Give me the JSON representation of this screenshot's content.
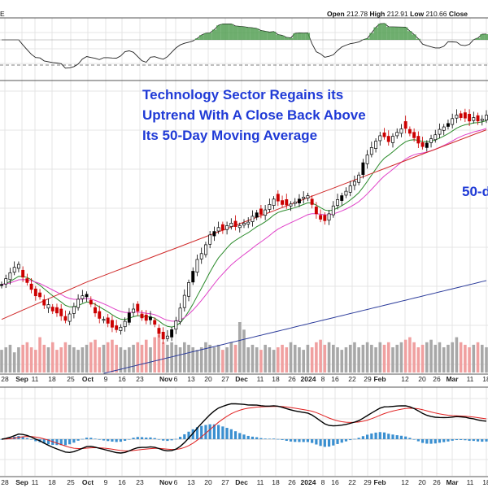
{
  "header": {
    "ticker_fragment": "E",
    "open_label": "Open",
    "open": "212.78",
    "high_label": "High",
    "high": "212.91",
    "low_label": "Low",
    "low": "210.66",
    "close_label": "Close"
  },
  "annotation": {
    "line1": "Technology Sector Regains its",
    "line2": "Uptrend With A Close Back Above",
    "line3": "Its 50-Day Moving Average",
    "ma_label": "50-d"
  },
  "colors": {
    "up_candle": "#000000",
    "down_candle": "#cc0000",
    "ema_fast": "#2a8a2a",
    "ema_slow": "#e040c8",
    "ma50": "#d02a2a",
    "ma200": "#2a3a9a",
    "volume_up": "#a8a8a8",
    "volume_down": "#f0a0a0",
    "macd_line": "#000000",
    "signal_line": "#e02020",
    "histogram": "#3a8fd0",
    "rsi_overbought_fill": "#4a9a4a",
    "annotation_text": "#1f3ad6"
  },
  "chart_data": {
    "type": "candlestick",
    "panels": [
      "RSI",
      "price",
      "volume",
      "MACD"
    ],
    "x_tick_labels": [
      {
        "label": "28",
        "bold": false
      },
      {
        "label": "Sep",
        "bold": true
      },
      {
        "label": "11",
        "bold": false
      },
      {
        "label": "18",
        "bold": false
      },
      {
        "label": "25",
        "bold": false
      },
      {
        "label": "Oct",
        "bold": true
      },
      {
        "label": "9",
        "bold": false
      },
      {
        "label": "16",
        "bold": false
      },
      {
        "label": "23",
        "bold": false
      },
      {
        "label": "Nov",
        "bold": true
      },
      {
        "label": "6",
        "bold": false
      },
      {
        "label": "13",
        "bold": false
      },
      {
        "label": "20",
        "bold": false
      },
      {
        "label": "27",
        "bold": false
      },
      {
        "label": "Dec",
        "bold": true
      },
      {
        "label": "11",
        "bold": false
      },
      {
        "label": "18",
        "bold": false
      },
      {
        "label": "26",
        "bold": false
      },
      {
        "label": "2024",
        "bold": true
      },
      {
        "label": "8",
        "bold": false
      },
      {
        "label": "16",
        "bold": false
      },
      {
        "label": "22",
        "bold": false
      },
      {
        "label": "29",
        "bold": false
      },
      {
        "label": "Feb",
        "bold": true
      },
      {
        "label": "12",
        "bold": false
      },
      {
        "label": "20",
        "bold": false
      },
      {
        "label": "26",
        "bold": false
      },
      {
        "label": "Mar",
        "bold": true
      },
      {
        "label": "11",
        "bold": false
      },
      {
        "label": "18",
        "bold": false
      }
    ],
    "x_tick_positions": [
      6,
      27,
      43,
      64,
      87,
      108,
      130,
      150,
      172,
      204,
      216,
      235,
      256,
      277,
      297,
      320,
      339,
      359,
      379,
      397,
      412,
      433,
      452,
      467,
      498,
      519,
      537,
      556,
      578,
      598
    ],
    "grid": true,
    "price_closes": [
      174.6,
      175.8,
      177.0,
      178.1,
      178.7,
      176.1,
      175.0,
      173.6,
      172.3,
      172.1,
      170.4,
      169.8,
      169.2,
      168.8,
      168.2,
      167.3,
      168.6,
      170.1,
      171.6,
      172.3,
      172.6,
      170.6,
      168.8,
      167.7,
      167.3,
      166.7,
      165.9,
      165.4,
      165.9,
      167.1,
      168.8,
      169.6,
      169.2,
      167.8,
      167.3,
      168.0,
      166.5,
      164.6,
      163.5,
      164.1,
      165.4,
      167.2,
      169.8,
      172.4,
      175.0,
      177.3,
      179.7,
      180.9,
      182.7,
      184.7,
      185.4,
      186.2,
      185.7,
      186.6,
      187.1,
      186.4,
      186.6,
      187.1,
      187.3,
      188.5,
      189.2,
      188.9,
      189.8,
      190.9,
      192.0,
      191.6,
      190.9,
      190.8,
      191.0,
      191.4,
      192.0,
      192.4,
      192.7,
      190.9,
      189.0,
      187.9,
      187.6,
      189.0,
      190.6,
      191.9,
      192.7,
      193.6,
      194.7,
      195.6,
      196.9,
      199.4,
      201.0,
      202.5,
      203.8,
      204.9,
      204.7,
      203.7,
      204.8,
      205.6,
      206.3,
      206.4,
      205.4,
      204.5,
      203.4,
      202.7,
      203.4,
      204.3,
      205.1,
      206.2,
      206.7,
      207.4,
      208.4,
      209.1,
      208.6,
      208.5,
      207.9,
      208.6,
      207.9,
      208.3,
      209.1
    ],
    "price_down_flags": [
      0,
      0,
      0,
      0,
      0,
      1,
      1,
      1,
      1,
      1,
      1,
      0,
      1,
      1,
      1,
      1,
      0,
      0,
      0,
      0,
      0,
      1,
      1,
      1,
      0,
      1,
      1,
      1,
      0,
      0,
      0,
      0,
      1,
      1,
      1,
      0,
      1,
      1,
      1,
      0,
      0,
      0,
      0,
      0,
      0,
      0,
      0,
      0,
      0,
      0,
      0,
      0,
      1,
      0,
      0,
      1,
      0,
      0,
      0,
      0,
      0,
      1,
      0,
      0,
      0,
      1,
      1,
      1,
      0,
      0,
      0,
      0,
      0,
      1,
      1,
      1,
      1,
      0,
      0,
      0,
      0,
      0,
      0,
      0,
      0,
      0,
      0,
      0,
      0,
      0,
      1,
      1,
      0,
      0,
      0,
      1,
      1,
      1,
      1,
      1,
      0,
      0,
      0,
      0,
      0,
      0,
      0,
      0,
      1,
      1,
      1,
      0,
      1,
      0,
      0
    ],
    "volume_relative": [
      0.45,
      0.5,
      0.55,
      0.4,
      0.5,
      0.55,
      0.6,
      0.5,
      0.45,
      0.7,
      0.55,
      0.5,
      0.6,
      0.45,
      0.5,
      0.6,
      0.55,
      0.5,
      0.45,
      0.5,
      0.55,
      0.6,
      0.65,
      0.5,
      0.55,
      0.6,
      0.65,
      0.55,
      0.5,
      0.45,
      0.5,
      0.55,
      0.6,
      0.55,
      0.65,
      0.5,
      0.7,
      0.75,
      0.6,
      0.55,
      0.6,
      0.55,
      0.5,
      0.6,
      0.55,
      0.5,
      0.45,
      0.5,
      0.6,
      0.55,
      0.5,
      0.55,
      0.45,
      0.5,
      0.6,
      0.55,
      1.0,
      0.85,
      0.5,
      0.55,
      0.5,
      0.45,
      0.55,
      0.5,
      0.45,
      0.5,
      0.55,
      0.5,
      0.6,
      0.55,
      0.5,
      0.45,
      0.55,
      0.5,
      0.6,
      0.65,
      0.55,
      0.6,
      0.55,
      0.5,
      0.45,
      0.5,
      0.55,
      0.6,
      0.5,
      0.55,
      0.6,
      0.55,
      0.5,
      0.6,
      0.55,
      0.6,
      0.5,
      0.55,
      0.6,
      0.65,
      0.7,
      0.6,
      0.5,
      0.55,
      0.6,
      0.65,
      0.55,
      0.6,
      0.5,
      0.55,
      0.6,
      0.7,
      0.6,
      0.55,
      0.5,
      0.55,
      0.6,
      0.55,
      0.5
    ]
  }
}
